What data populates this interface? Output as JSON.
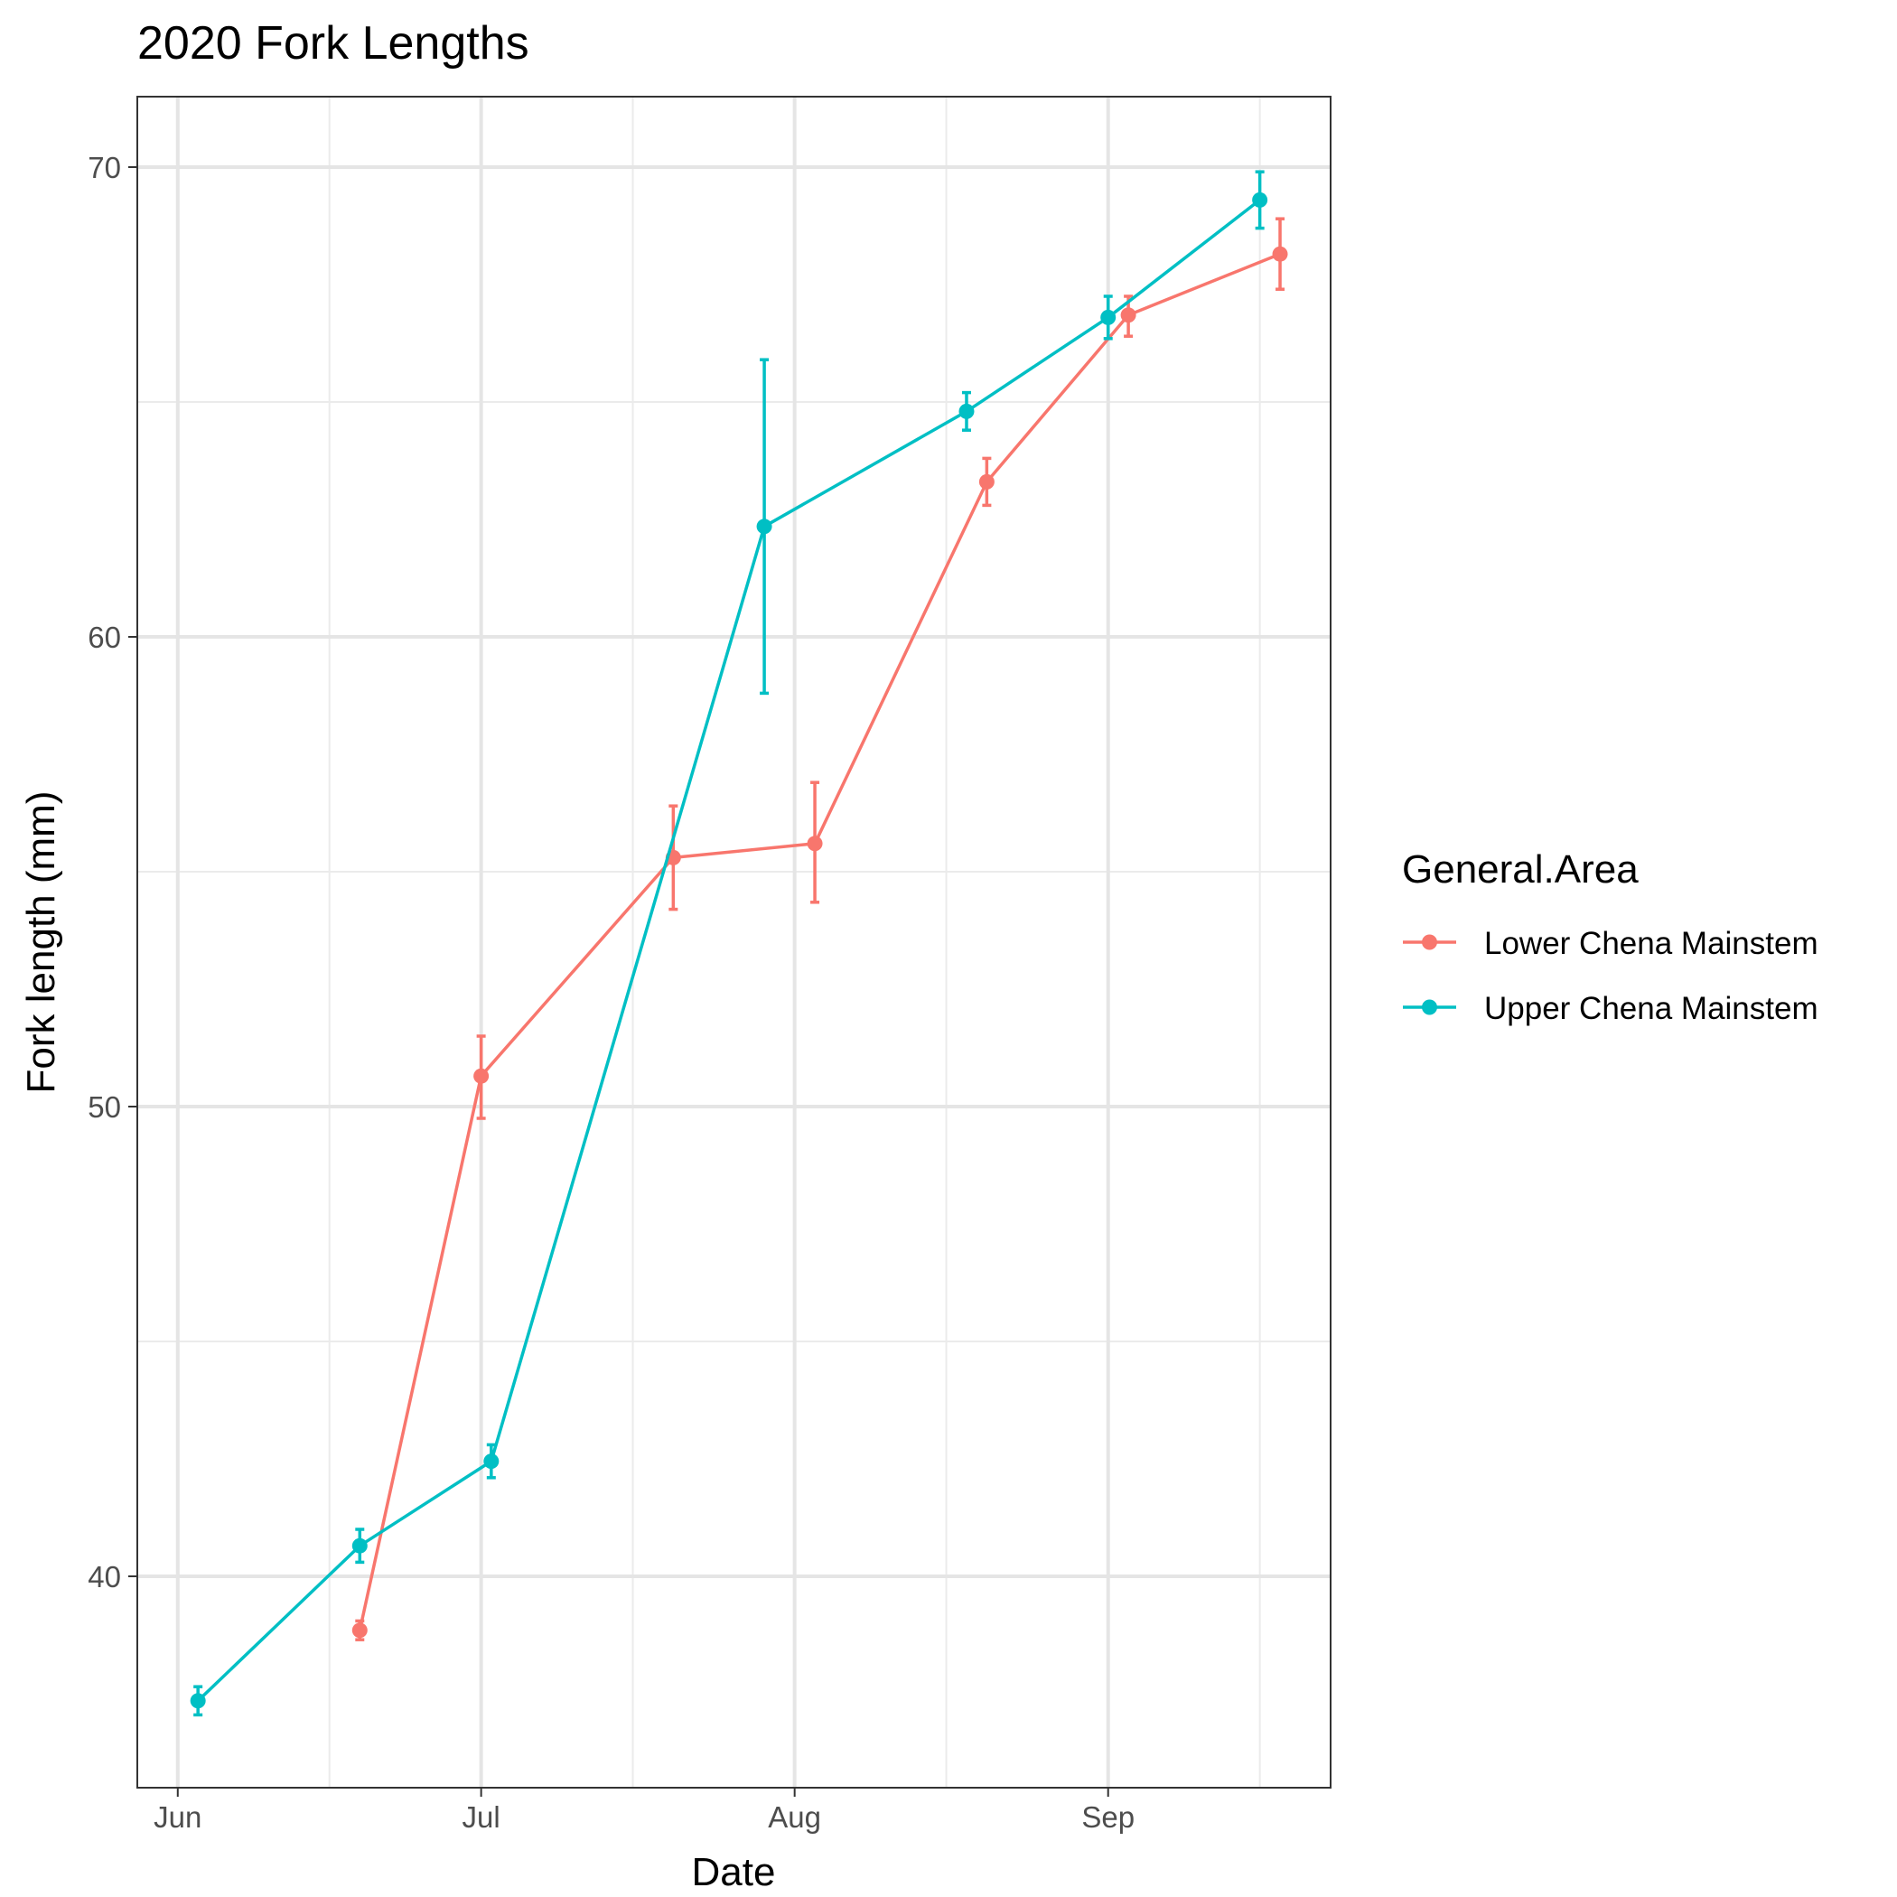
{
  "chart_data": {
    "type": "line",
    "title": "2020 Fork Lengths",
    "xlabel": "Date",
    "ylabel": "Fork length (mm)",
    "x_ticks": [
      {
        "date": "2020-06-01",
        "label": "Jun"
      },
      {
        "date": "2020-07-01",
        "label": "Jul"
      },
      {
        "date": "2020-08-01",
        "label": "Aug"
      },
      {
        "date": "2020-09-01",
        "label": "Sep"
      }
    ],
    "x_minor_ticks": [
      "2020-06-16",
      "2020-07-16",
      "2020-08-16",
      "2020-09-16"
    ],
    "xlim": [
      "2020-05-28",
      "2020-09-23"
    ],
    "y_ticks": [
      40,
      50,
      60,
      70
    ],
    "y_minor_ticks": [
      45,
      55,
      65
    ],
    "ylim": [
      35.5,
      71.5
    ],
    "grid": true,
    "legend": {
      "title": "General.Area",
      "position": "right"
    },
    "series": [
      {
        "name": "Lower Chena Mainstem",
        "color": "#F8766D",
        "points": [
          {
            "x": "2020-06-19",
            "y": 38.85,
            "ymin": 38.65,
            "ymax": 39.05
          },
          {
            "x": "2020-07-01",
            "y": 50.65,
            "ymin": 49.75,
            "ymax": 51.5
          },
          {
            "x": "2020-07-20",
            "y": 55.3,
            "ymin": 54.2,
            "ymax": 56.4
          },
          {
            "x": "2020-08-03",
            "y": 55.6,
            "ymin": 54.35,
            "ymax": 56.9
          },
          {
            "x": "2020-08-20",
            "y": 63.3,
            "ymin": 62.8,
            "ymax": 63.8
          },
          {
            "x": "2020-09-03",
            "y": 66.85,
            "ymin": 66.4,
            "ymax": 67.25
          },
          {
            "x": "2020-09-18",
            "y": 68.15,
            "ymin": 67.4,
            "ymax": 68.9
          }
        ]
      },
      {
        "name": "Upper Chena Mainstem",
        "color": "#00BFC4",
        "points": [
          {
            "x": "2020-06-03",
            "y": 37.35,
            "ymin": 37.05,
            "ymax": 37.65
          },
          {
            "x": "2020-06-19",
            "y": 40.65,
            "ymin": 40.3,
            "ymax": 41.0
          },
          {
            "x": "2020-07-02",
            "y": 42.45,
            "ymin": 42.1,
            "ymax": 42.8
          },
          {
            "x": "2020-07-29",
            "y": 62.35,
            "ymin": 58.8,
            "ymax": 65.9
          },
          {
            "x": "2020-08-18",
            "y": 64.8,
            "ymin": 64.4,
            "ymax": 65.2
          },
          {
            "x": "2020-09-01",
            "y": 66.8,
            "ymin": 66.35,
            "ymax": 67.25
          },
          {
            "x": "2020-09-16",
            "y": 69.3,
            "ymin": 68.7,
            "ymax": 69.9
          }
        ]
      }
    ]
  }
}
